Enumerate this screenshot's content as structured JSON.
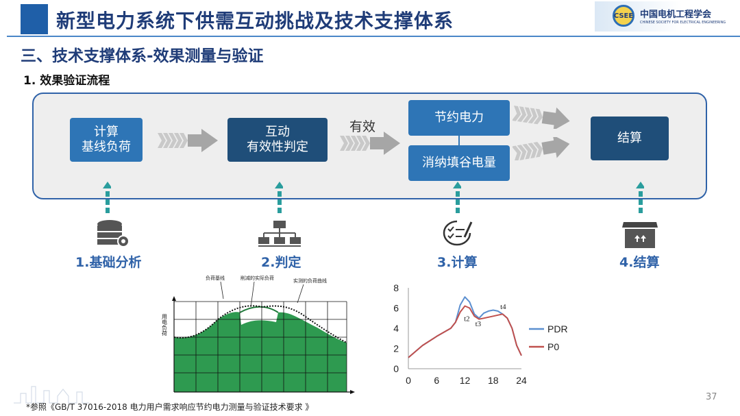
{
  "header": {
    "title": "新型电力系统下供需互动挑战及技术支撑体系",
    "logo_cn": "中国电机工程学会",
    "logo_en": "CHINESE SOCIETY FOR ELECTRICAL ENGINEERING",
    "logo_abbr": "CSEE"
  },
  "section_title": "三、技术支撑体系-效果测量与验证",
  "sub_title": "1. 效果验证流程",
  "flow": {
    "box1_line1": "计算",
    "box1_line2": "基线负荷",
    "box2_line1": "互动",
    "box2_line2": "有效性判定",
    "valid_label": "有效",
    "box3": "节约电力",
    "box4": "消纳填谷电量",
    "box5": "结算"
  },
  "stages": [
    {
      "label": "1.基础分析",
      "icon": "database-gear-icon"
    },
    {
      "label": "2.判定",
      "icon": "network-icon"
    },
    {
      "label": "3.计算",
      "icon": "checklist-icon"
    },
    {
      "label": "4.结算",
      "icon": "box-icon"
    }
  ],
  "load_chart": {
    "ylabel": "用电负荷",
    "annotations": [
      "负荷基线",
      "削减的实际负荷",
      "实测的负荷曲线"
    ]
  },
  "chart_data": {
    "type": "line",
    "x": [
      0,
      3,
      6,
      9,
      10,
      11,
      12,
      13,
      14,
      15,
      16,
      17,
      18,
      19,
      20,
      21,
      22,
      23,
      24
    ],
    "series": [
      {
        "name": "PDR",
        "values": [
          1.1,
          2.3,
          3.2,
          4.0,
          4.6,
          6.3,
          7.1,
          6.6,
          5.4,
          5.0,
          5.5,
          5.7,
          5.8,
          5.7,
          5.4,
          5.0,
          4.0,
          2.3,
          1.3
        ],
        "color": "#5b8fd0"
      },
      {
        "name": "P0",
        "values": [
          1.1,
          2.3,
          3.2,
          4.0,
          4.6,
          5.6,
          6.2,
          6.0,
          5.2,
          4.9,
          5.0,
          5.1,
          5.2,
          5.3,
          5.4,
          5.0,
          4.0,
          2.3,
          1.3
        ],
        "color": "#c0504d"
      }
    ],
    "xticks": [
      "0",
      "6",
      "12",
      "18",
      "24"
    ],
    "yticks": [
      "0",
      "2",
      "4",
      "6",
      "8"
    ],
    "xlim": [
      0,
      24
    ],
    "ylim": [
      0,
      8
    ],
    "annotations": [
      {
        "text": "t2",
        "x": 11.8,
        "y": 4.7
      },
      {
        "text": "t3",
        "x": 14.2,
        "y": 4.2
      },
      {
        "text": "t4",
        "x": 19.5,
        "y": 5.9
      }
    ],
    "legend": "right",
    "grid": false
  },
  "page_number": "37",
  "footnote": "*参照《GB/T 37016-2018 电力用户需求响应节约电力测量与验证技术要求 》"
}
